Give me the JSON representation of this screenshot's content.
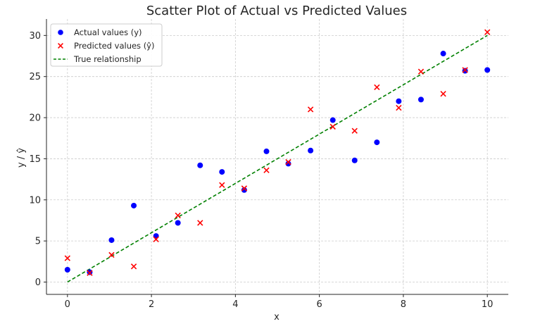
{
  "chart_data": {
    "type": "scatter",
    "title": "Scatter Plot of Actual vs Predicted Values",
    "xlabel": "x",
    "ylabel": "y / ŷ",
    "xlim": [
      -0.5,
      10.5
    ],
    "ylim": [
      -1.5,
      32
    ],
    "xticks": [
      0,
      2,
      4,
      6,
      8,
      10
    ],
    "yticks": [
      0,
      5,
      10,
      15,
      20,
      25,
      30
    ],
    "grid": true,
    "legend_position": "top-left",
    "series": [
      {
        "name": "Actual values (y)",
        "type": "scatter",
        "marker": "circle",
        "color": "#0000ff",
        "points": [
          [
            0.0,
            1.5
          ],
          [
            0.53,
            1.2
          ],
          [
            1.05,
            5.1
          ],
          [
            1.58,
            9.3
          ],
          [
            2.11,
            5.6
          ],
          [
            2.63,
            7.2
          ],
          [
            3.16,
            14.2
          ],
          [
            3.68,
            13.4
          ],
          [
            4.21,
            11.2
          ],
          [
            4.74,
            15.9
          ],
          [
            5.26,
            14.4
          ],
          [
            5.79,
            16.0
          ],
          [
            6.32,
            19.7
          ],
          [
            6.84,
            14.8
          ],
          [
            7.37,
            17.0
          ],
          [
            7.89,
            22.0
          ],
          [
            8.42,
            22.2
          ],
          [
            8.95,
            27.8
          ],
          [
            9.47,
            25.7
          ],
          [
            10.0,
            25.8
          ]
        ]
      },
      {
        "name": "Predicted values (ŷ)",
        "type": "scatter",
        "marker": "x",
        "color": "#ff0000",
        "points": [
          [
            0.0,
            2.9
          ],
          [
            0.53,
            1.1
          ],
          [
            1.05,
            3.3
          ],
          [
            1.58,
            1.9
          ],
          [
            2.11,
            5.2
          ],
          [
            2.63,
            8.1
          ],
          [
            3.16,
            7.2
          ],
          [
            3.68,
            11.8
          ],
          [
            4.21,
            11.4
          ],
          [
            4.74,
            13.6
          ],
          [
            5.26,
            14.6
          ],
          [
            5.79,
            21.0
          ],
          [
            6.32,
            18.9
          ],
          [
            6.84,
            18.4
          ],
          [
            7.37,
            23.7
          ],
          [
            7.89,
            21.2
          ],
          [
            8.42,
            25.6
          ],
          [
            8.95,
            22.9
          ],
          [
            9.47,
            25.8
          ],
          [
            10.0,
            30.4
          ]
        ]
      },
      {
        "name": "True relationship",
        "type": "line",
        "style": "dashed",
        "color": "#008000",
        "points": [
          [
            0,
            0
          ],
          [
            10,
            30
          ]
        ]
      }
    ]
  }
}
